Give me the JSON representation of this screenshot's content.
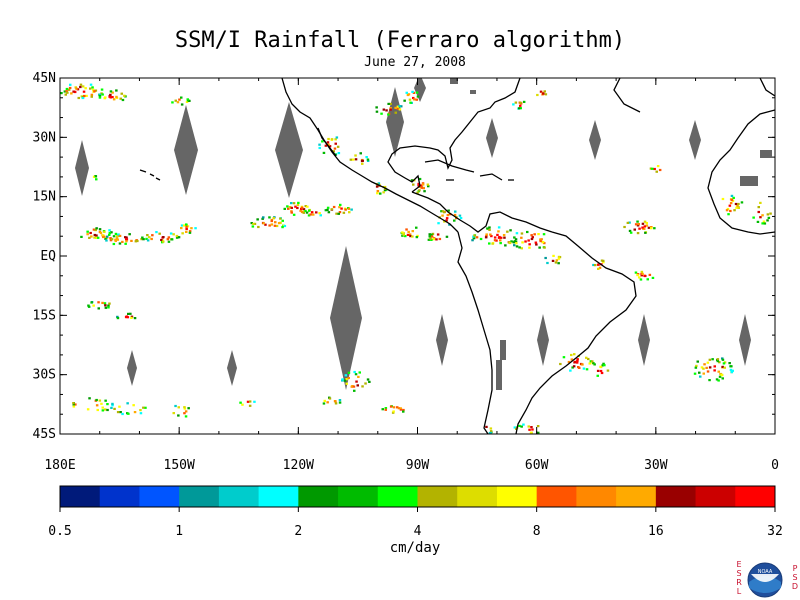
{
  "header": {
    "title": "SSM/I Rainfall (Ferraro algorithm)",
    "date": "June 27, 2008"
  },
  "map": {
    "lat_labels": [
      "45N",
      "30N",
      "15N",
      "EQ",
      "15S",
      "30S",
      "45S"
    ],
    "lon_labels": [
      "180E",
      "150W",
      "120W",
      "90W",
      "60W",
      "30W",
      "0"
    ],
    "lon_range": [
      -180,
      0
    ],
    "lat_range": [
      -45,
      45
    ],
    "no_data_color": "#666666",
    "coast_color": "#000000"
  },
  "colorbar": {
    "colors": [
      "#001a7a",
      "#0033cc",
      "#0055ff",
      "#009999",
      "#00cccc",
      "#00ffff",
      "#009900",
      "#00bb00",
      "#00ff00",
      "#b3b300",
      "#dddd00",
      "#ffff00",
      "#ff5500",
      "#ff8800",
      "#ffaa00",
      "#990000",
      "#cc0000",
      "#ff0000"
    ],
    "tick_labels": [
      "0.5",
      "1",
      "2",
      "4",
      "8",
      "16",
      "32"
    ],
    "unit": "cm/day"
  },
  "logo": {
    "left_letters": [
      "E",
      "S",
      "R",
      "L"
    ],
    "right_letters": [
      "P",
      "S",
      "D"
    ],
    "badge": "NOAA"
  }
}
